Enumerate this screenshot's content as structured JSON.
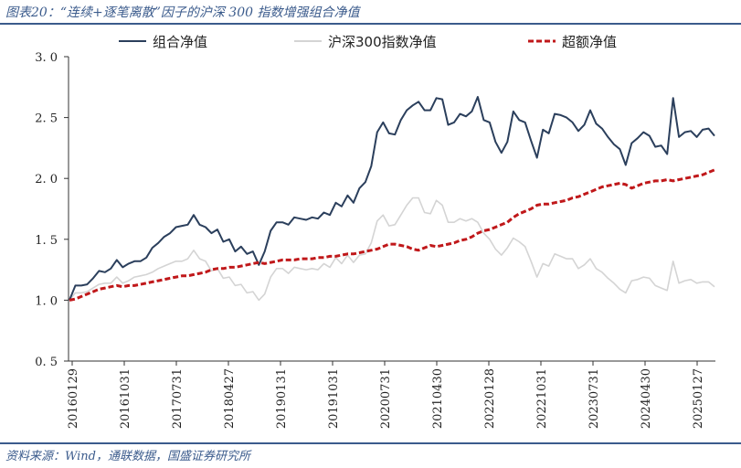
{
  "header": {
    "title": "图表20：“连续+逐笔离散”因子的沪深 300 指数增强组合净值"
  },
  "footer": {
    "source": "资料来源：Wind，通联数据，国盛证券研究所"
  },
  "chart_data": {
    "type": "line",
    "ylim": [
      0.5,
      3.0
    ],
    "yticks": [
      "3. 0",
      "2. 5",
      "2. 0",
      "1. 5",
      "1. 0",
      "0. 5"
    ],
    "ytick_values": [
      3.0,
      2.5,
      2.0,
      1.5,
      1.0,
      0.5
    ],
    "xtick_labels": [
      "20160129",
      "20161031",
      "20170731",
      "20180427",
      "20190131",
      "20191031",
      "20200731",
      "20210430",
      "20220128",
      "20221031",
      "20230731",
      "20240430",
      "20250127"
    ],
    "legend_position": "top",
    "grid": false,
    "colors": {
      "portfolio": "#2b3f5c",
      "hs300": "#d4d4d4",
      "excess": "#c0181a"
    },
    "series": [
      {
        "name": "组合净值",
        "style": "solid",
        "color_key": "portfolio",
        "values": [
          1.0,
          1.12,
          1.12,
          1.13,
          1.18,
          1.24,
          1.23,
          1.26,
          1.33,
          1.27,
          1.3,
          1.32,
          1.32,
          1.35,
          1.43,
          1.47,
          1.52,
          1.55,
          1.6,
          1.61,
          1.62,
          1.7,
          1.62,
          1.6,
          1.55,
          1.58,
          1.48,
          1.5,
          1.4,
          1.44,
          1.38,
          1.4,
          1.29,
          1.4,
          1.57,
          1.64,
          1.64,
          1.62,
          1.68,
          1.67,
          1.66,
          1.68,
          1.67,
          1.72,
          1.7,
          1.8,
          1.77,
          1.86,
          1.8,
          1.92,
          1.97,
          2.1,
          2.38,
          2.46,
          2.37,
          2.36,
          2.48,
          2.56,
          2.6,
          2.63,
          2.56,
          2.56,
          2.66,
          2.65,
          2.44,
          2.46,
          2.53,
          2.51,
          2.55,
          2.67,
          2.48,
          2.46,
          2.3,
          2.21,
          2.3,
          2.55,
          2.48,
          2.46,
          2.31,
          2.17,
          2.4,
          2.37,
          2.53,
          2.52,
          2.5,
          2.46,
          2.39,
          2.44,
          2.56,
          2.45,
          2.41,
          2.34,
          2.28,
          2.24,
          2.11,
          2.29,
          2.33,
          2.38,
          2.35,
          2.26,
          2.27,
          2.2,
          2.66,
          2.34,
          2.38,
          2.39,
          2.34,
          2.4,
          2.41,
          2.35
        ]
      },
      {
        "name": "沪深300指数净值",
        "style": "solid",
        "color_key": "hs300",
        "values": [
          1.0,
          1.06,
          1.06,
          1.07,
          1.1,
          1.13,
          1.14,
          1.14,
          1.19,
          1.14,
          1.16,
          1.19,
          1.2,
          1.21,
          1.23,
          1.26,
          1.28,
          1.3,
          1.32,
          1.32,
          1.34,
          1.41,
          1.34,
          1.32,
          1.24,
          1.26,
          1.18,
          1.19,
          1.12,
          1.13,
          1.06,
          1.07,
          1.0,
          1.05,
          1.19,
          1.26,
          1.26,
          1.22,
          1.27,
          1.26,
          1.25,
          1.26,
          1.25,
          1.3,
          1.27,
          1.35,
          1.3,
          1.37,
          1.31,
          1.37,
          1.38,
          1.47,
          1.65,
          1.7,
          1.61,
          1.62,
          1.7,
          1.78,
          1.84,
          1.84,
          1.72,
          1.71,
          1.82,
          1.78,
          1.64,
          1.64,
          1.67,
          1.65,
          1.67,
          1.64,
          1.55,
          1.5,
          1.42,
          1.37,
          1.43,
          1.51,
          1.48,
          1.44,
          1.32,
          1.19,
          1.3,
          1.28,
          1.38,
          1.36,
          1.34,
          1.34,
          1.26,
          1.29,
          1.34,
          1.26,
          1.23,
          1.18,
          1.14,
          1.09,
          1.06,
          1.16,
          1.17,
          1.19,
          1.18,
          1.12,
          1.1,
          1.08,
          1.32,
          1.14,
          1.16,
          1.17,
          1.14,
          1.15,
          1.15,
          1.11
        ]
      },
      {
        "name": "超额净值",
        "style": "dashed",
        "color_key": "excess",
        "values": [
          1.0,
          1.01,
          1.03,
          1.05,
          1.07,
          1.09,
          1.1,
          1.11,
          1.12,
          1.11,
          1.12,
          1.12,
          1.13,
          1.14,
          1.15,
          1.16,
          1.17,
          1.18,
          1.19,
          1.2,
          1.2,
          1.21,
          1.22,
          1.23,
          1.25,
          1.26,
          1.26,
          1.27,
          1.27,
          1.28,
          1.29,
          1.3,
          1.31,
          1.3,
          1.31,
          1.32,
          1.33,
          1.33,
          1.33,
          1.34,
          1.34,
          1.34,
          1.35,
          1.35,
          1.36,
          1.36,
          1.37,
          1.38,
          1.38,
          1.39,
          1.4,
          1.41,
          1.42,
          1.44,
          1.46,
          1.46,
          1.45,
          1.44,
          1.42,
          1.41,
          1.43,
          1.45,
          1.44,
          1.45,
          1.46,
          1.47,
          1.49,
          1.5,
          1.52,
          1.55,
          1.57,
          1.58,
          1.6,
          1.62,
          1.64,
          1.68,
          1.71,
          1.73,
          1.75,
          1.78,
          1.79,
          1.79,
          1.8,
          1.81,
          1.82,
          1.84,
          1.85,
          1.87,
          1.89,
          1.91,
          1.93,
          1.94,
          1.95,
          1.96,
          1.95,
          1.92,
          1.94,
          1.96,
          1.97,
          1.98,
          1.98,
          1.99,
          1.98,
          1.99,
          2.0,
          2.01,
          2.02,
          2.03,
          2.05,
          2.07
        ]
      }
    ]
  }
}
